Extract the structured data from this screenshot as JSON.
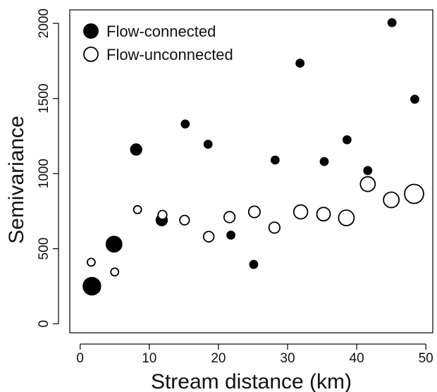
{
  "chart_data": {
    "type": "scatter",
    "title": "",
    "xlabel": "Stream distance (km)",
    "ylabel": "Semivariance",
    "xlim": [
      -1.5,
      51
    ],
    "ylim": [
      -60,
      2090
    ],
    "xticks": [
      0,
      10,
      20,
      30,
      40,
      50
    ],
    "yticks": [
      0,
      500,
      1000,
      1500,
      2000
    ],
    "grid": false,
    "legend_position": "top-left",
    "series": [
      {
        "name": "Flow-connected",
        "marker": "filled-circle",
        "color": "#000000",
        "points": [
          {
            "x": 1.7,
            "y": 250,
            "n": 5
          },
          {
            "x": 4.9,
            "y": 530,
            "n": 4
          },
          {
            "x": 8.1,
            "y": 1160,
            "n": 2
          },
          {
            "x": 11.8,
            "y": 690,
            "n": 2
          },
          {
            "x": 15.2,
            "y": 1330,
            "n": 1
          },
          {
            "x": 18.5,
            "y": 1195,
            "n": 1
          },
          {
            "x": 21.8,
            "y": 590,
            "n": 1
          },
          {
            "x": 25.1,
            "y": 395,
            "n": 1
          },
          {
            "x": 28.2,
            "y": 1090,
            "n": 1
          },
          {
            "x": 31.8,
            "y": 1735,
            "n": 1
          },
          {
            "x": 35.3,
            "y": 1080,
            "n": 1
          },
          {
            "x": 38.6,
            "y": 1225,
            "n": 1
          },
          {
            "x": 41.6,
            "y": 1020,
            "n": 1
          },
          {
            "x": 45.1,
            "y": 2005,
            "n": 1
          },
          {
            "x": 48.4,
            "y": 1495,
            "n": 1
          }
        ]
      },
      {
        "name": "Flow-unconnected",
        "marker": "open-circle",
        "color": "#000000",
        "points": [
          {
            "x": 1.6,
            "y": 410,
            "n": 1
          },
          {
            "x": 5.0,
            "y": 345,
            "n": 1
          },
          {
            "x": 8.3,
            "y": 760,
            "n": 1
          },
          {
            "x": 11.9,
            "y": 725,
            "n": 1.3
          },
          {
            "x": 15.1,
            "y": 690,
            "n": 1.5
          },
          {
            "x": 18.6,
            "y": 580,
            "n": 1.8
          },
          {
            "x": 21.6,
            "y": 710,
            "n": 2
          },
          {
            "x": 25.2,
            "y": 745,
            "n": 2.2
          },
          {
            "x": 28.1,
            "y": 640,
            "n": 2
          },
          {
            "x": 31.9,
            "y": 745,
            "n": 3.2
          },
          {
            "x": 35.2,
            "y": 730,
            "n": 3
          },
          {
            "x": 38.5,
            "y": 705,
            "n": 4
          },
          {
            "x": 41.6,
            "y": 930,
            "n": 3.6
          },
          {
            "x": 45.0,
            "y": 825,
            "n": 4
          },
          {
            "x": 48.3,
            "y": 865,
            "n": 6
          }
        ]
      }
    ]
  }
}
